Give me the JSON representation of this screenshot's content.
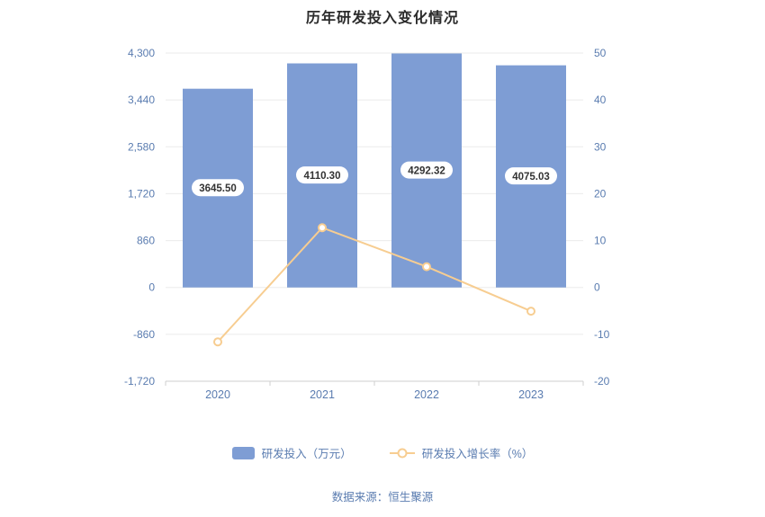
{
  "title": "历年研发投入变化情况",
  "source": "数据来源：恒生聚源",
  "colors": {
    "bar": "#7e9dd4",
    "line": "#f7cd91",
    "axis_text": "#5a7cb0",
    "grid": "#ebebeb",
    "axis_line": "#cfcfcf",
    "label_bg": "#ffffff",
    "label_text": "#333333",
    "title": "#2b2b2b"
  },
  "legend": [
    {
      "label": "研发投入（万元）",
      "type": "bar"
    },
    {
      "label": "研发投入增长率（%）",
      "type": "line"
    }
  ],
  "chart_data": {
    "type": "bar",
    "title": "历年研发投入变化情况",
    "categories": [
      "2020",
      "2021",
      "2022",
      "2023"
    ],
    "series": [
      {
        "name": "研发投入（万元）",
        "type": "bar",
        "axis": "left",
        "values": [
          3645.5,
          4110.3,
          4292.32,
          4075.03
        ],
        "data_labels": [
          "3645.50",
          "4110.30",
          "4292.32",
          "4075.03"
        ]
      },
      {
        "name": "研发投入增长率（%）",
        "type": "line",
        "axis": "right",
        "values": [
          -11.6,
          12.75,
          4.43,
          -5.06
        ]
      }
    ],
    "axes": {
      "left": {
        "min": -1720,
        "max": 4300,
        "tick_labels": [
          "4,300",
          "3,440",
          "2,580",
          "1,720",
          "860",
          "0",
          "-860",
          "-1,720"
        ]
      },
      "right": {
        "min": -20,
        "max": 50,
        "tick_labels": [
          "50",
          "40",
          "30",
          "20",
          "10",
          "0",
          "-10",
          "-20"
        ]
      }
    },
    "grid": true,
    "legend_position": "bottom"
  }
}
